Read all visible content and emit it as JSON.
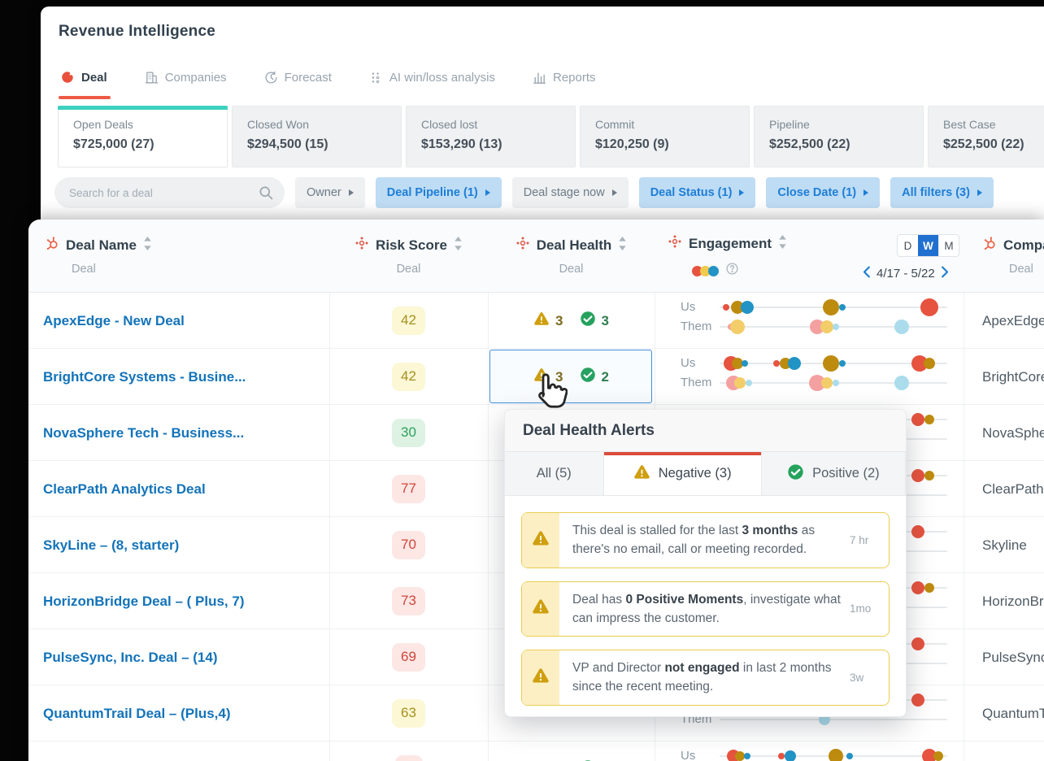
{
  "app": {
    "title": "Revenue Intelligence"
  },
  "nav": {
    "tabs": [
      {
        "label": "Deal",
        "icon": "gong-logo-icon",
        "active": true
      },
      {
        "label": "Companies",
        "icon": "companies-icon",
        "active": false
      },
      {
        "label": "Forecast",
        "icon": "forecast-icon",
        "active": false
      },
      {
        "label": "AI win/loss analysis",
        "icon": "ai-winloss-icon",
        "active": false
      },
      {
        "label": "Reports",
        "icon": "reports-icon",
        "active": false
      }
    ]
  },
  "summary_cards": [
    {
      "label": "Open Deals",
      "value": "$725,000 (27)",
      "active": true
    },
    {
      "label": "Closed Won",
      "value": "$294,500 (15)",
      "active": false
    },
    {
      "label": "Closed lost",
      "value": "$153,290 (13)",
      "active": false
    },
    {
      "label": "Commit",
      "value": "$120,250 (9)",
      "active": false
    },
    {
      "label": "Pipeline",
      "value": "$252,500 (22)",
      "active": false
    },
    {
      "label": "Best Case",
      "value": "$252,500 (22)",
      "active": false
    }
  ],
  "filter_bar": {
    "search_placeholder": "Search for a deal",
    "buttons": [
      {
        "label": "Owner",
        "active": false
      },
      {
        "label": "Deal Pipeline (1)",
        "active": true
      },
      {
        "label": "Deal stage now",
        "active": false
      },
      {
        "label": "Deal Status (1)",
        "active": true
      },
      {
        "label": "Close Date (1)",
        "active": true
      },
      {
        "label": "All filters (3)",
        "active": true
      }
    ]
  },
  "table": {
    "columns": {
      "deal_name": {
        "title": "Deal Name",
        "subtitle": "Deal"
      },
      "risk_score": {
        "title": "Risk Score",
        "subtitle": "Deal"
      },
      "deal_health": {
        "title": "Deal Health",
        "subtitle": "Deal"
      },
      "engagement": {
        "title": "Engagement"
      },
      "company": {
        "title": "Company",
        "subtitle": "Deal"
      }
    },
    "engagement_controls": {
      "toggle": [
        "D",
        "W",
        "M"
      ],
      "selected": "W",
      "date_range": "4/17 - 5/22"
    },
    "us_label": "Us",
    "them_label": "Them",
    "rows": [
      {
        "name": "ApexEdge - New Deal",
        "risk": "42",
        "risk_level": "yellow",
        "health": {
          "neg": "3",
          "pos": "3"
        },
        "selected": false,
        "company": "ApexEdge",
        "us": [
          [
            3,
            4,
            "red"
          ],
          [
            8,
            8,
            "olive"
          ],
          [
            12,
            8,
            "blue"
          ],
          [
            49,
            10,
            "olive"
          ],
          [
            54,
            4,
            "blue"
          ],
          [
            92,
            11,
            "red"
          ]
        ],
        "them": [
          [
            5,
            4,
            "pink"
          ],
          [
            8,
            9,
            "yellow"
          ],
          [
            43,
            9,
            "pink"
          ],
          [
            47,
            8,
            "yellow"
          ],
          [
            51,
            4,
            "lightblue"
          ],
          [
            80,
            9,
            "lightblue"
          ]
        ]
      },
      {
        "name": "BrightCore Systems - Busine...",
        "risk": "42",
        "risk_level": "yellow",
        "health": {
          "neg": "3",
          "pos": "2"
        },
        "selected": true,
        "company": "BrightCore",
        "us": [
          [
            5,
            9,
            "red"
          ],
          [
            8,
            7,
            "olive"
          ],
          [
            11,
            4,
            "blue"
          ],
          [
            25,
            4,
            "red"
          ],
          [
            29,
            7,
            "olive"
          ],
          [
            33,
            8,
            "blue"
          ],
          [
            49,
            10,
            "olive"
          ],
          [
            54,
            4,
            "blue"
          ],
          [
            88,
            10,
            "red"
          ],
          [
            92,
            7,
            "olive"
          ]
        ],
        "them": [
          [
            6,
            9,
            "pink"
          ],
          [
            9,
            7,
            "yellow"
          ],
          [
            13,
            4,
            "lightblue"
          ],
          [
            43,
            10,
            "pink"
          ],
          [
            47,
            7,
            "yellow"
          ],
          [
            51,
            4,
            "lightblue"
          ],
          [
            80,
            9,
            "lightblue"
          ]
        ]
      },
      {
        "name": "NovaSphere Tech - Business...",
        "risk": "30",
        "risk_level": "green",
        "health": null,
        "selected": false,
        "company": "NovaSphere",
        "us": [
          [
            87,
            8,
            "red"
          ],
          [
            92,
            6,
            "olive"
          ]
        ],
        "them": []
      },
      {
        "name": "ClearPath Analytics Deal",
        "risk": "77",
        "risk_level": "red",
        "health": null,
        "selected": false,
        "company": "ClearPath",
        "us": [
          [
            87,
            8,
            "red"
          ],
          [
            92,
            6,
            "olive"
          ]
        ],
        "them": []
      },
      {
        "name": "SkyLine – (8, starter)",
        "risk": "70",
        "risk_level": "red",
        "health": null,
        "selected": false,
        "company": "Skyline",
        "us": [
          [
            87,
            8,
            "red"
          ]
        ],
        "them": []
      },
      {
        "name": "HorizonBridge Deal – ( Plus, 7)",
        "risk": "73",
        "risk_level": "red",
        "health": null,
        "selected": false,
        "company": "HorizonBridge",
        "us": [
          [
            87,
            8,
            "red"
          ],
          [
            92,
            6,
            "olive"
          ]
        ],
        "them": []
      },
      {
        "name": "PulseSync, Inc. Deal – (14)",
        "risk": "69",
        "risk_level": "red",
        "health": null,
        "selected": false,
        "company": "PulseSync",
        "us": [
          [
            87,
            8,
            "red"
          ]
        ],
        "them": []
      },
      {
        "name": "QuantumTrail Deal – (Plus,4)",
        "risk": "63",
        "risk_level": "yellow",
        "health": null,
        "selected": false,
        "company": "QuantumTrail",
        "us": [
          [
            87,
            8,
            "red"
          ]
        ],
        "them": [
          [
            46,
            7,
            "lightblue"
          ]
        ]
      },
      {
        "name": "",
        "risk": "",
        "risk_level": "red",
        "health": {
          "neg": "",
          "pos": ""
        },
        "selected": false,
        "company": "",
        "us": [
          [
            6,
            8,
            "red"
          ],
          [
            9,
            6,
            "olive"
          ],
          [
            12,
            4,
            "blue"
          ],
          [
            27,
            4,
            "red"
          ],
          [
            31,
            7,
            "blue"
          ],
          [
            51,
            9,
            "olive"
          ],
          [
            57,
            4,
            "blue"
          ],
          [
            92,
            9,
            "red"
          ],
          [
            96,
            6,
            "olive"
          ]
        ],
        "them": []
      }
    ]
  },
  "popup": {
    "title": "Deal Health Alerts",
    "tabs": [
      {
        "label": "All (5)",
        "icon": null,
        "active": false
      },
      {
        "label": "Negative (3)",
        "icon": "warning-icon",
        "active": true
      },
      {
        "label": "Positive (2)",
        "icon": "check-icon",
        "active": false
      }
    ],
    "alerts": [
      {
        "segments": [
          {
            "t": "This deal is stalled for the last "
          },
          {
            "t": "3 months",
            "b": 1
          },
          {
            "t": " as there's no email, call or meeting recorded."
          }
        ],
        "time": "7 hr"
      },
      {
        "segments": [
          {
            "t": "Deal has "
          },
          {
            "t": "0 Positive Moments",
            "b": 1
          },
          {
            "t": ", investigate what can impress the customer."
          }
        ],
        "time": "1mo"
      },
      {
        "segments": [
          {
            "t": "VP and Director "
          },
          {
            "t": "not engaged",
            "b": 1
          },
          {
            "t": " in last 2 months since the recent meeting."
          }
        ],
        "time": "3w"
      }
    ]
  },
  "colors": {
    "accent_red": "#ef5a44",
    "teal": "#3ed0c0",
    "link_blue": "#1373b9",
    "warning": "#cf9f0e",
    "positive": "#25a25d",
    "selection_blue": "#4090d9",
    "toggle_blue": "#2070cf",
    "popup_tab_red": "#dc4c3a",
    "dot_red": "#e6533f",
    "dot_olive": "#bd8b0e",
    "dot_blue": "#2293c5",
    "dot_pink": "#f5a0a0",
    "dot_yellow": "#f2cd69",
    "dot_lightblue": "#aadcec"
  }
}
